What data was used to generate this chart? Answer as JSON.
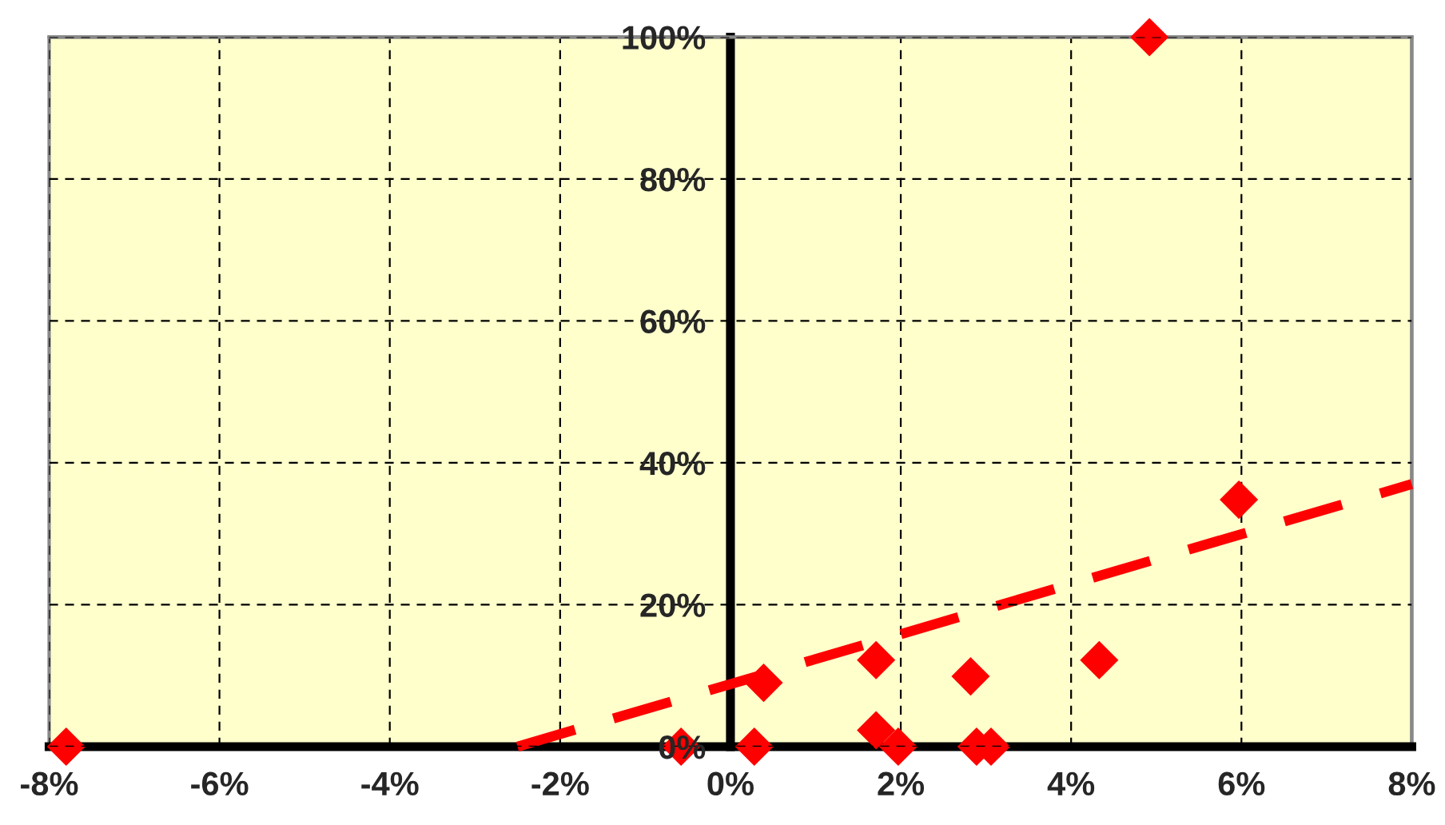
{
  "chart_data": {
    "type": "scatter",
    "xlim": [
      -8,
      8
    ],
    "ylim": [
      0,
      100
    ],
    "xticks": [
      {
        "value": -8,
        "label": "-8%"
      },
      {
        "value": -6,
        "label": "-6%"
      },
      {
        "value": -4,
        "label": "-4%"
      },
      {
        "value": -2,
        "label": "-2%"
      },
      {
        "value": 0,
        "label": "0%"
      },
      {
        "value": 2,
        "label": "2%"
      },
      {
        "value": 4,
        "label": "4%"
      },
      {
        "value": 6,
        "label": "6%"
      },
      {
        "value": 8,
        "label": "8%"
      }
    ],
    "yticks": [
      {
        "value": 0,
        "label": "0%"
      },
      {
        "value": 20,
        "label": "20%"
      },
      {
        "value": 40,
        "label": "40%"
      },
      {
        "value": 60,
        "label": "60%"
      },
      {
        "value": 80,
        "label": "80%"
      },
      {
        "value": 100,
        "label": "100%"
      }
    ],
    "grid": true,
    "legend": false,
    "series": [
      {
        "marker": "diamond",
        "color": "#ff0000",
        "x": [
          -7.8,
          -0.58,
          0.28,
          0.39,
          1.71,
          1.71,
          1.97,
          2.82,
          2.89,
          3.06,
          4.33,
          4.92,
          5.97
        ],
        "values": [
          0,
          0,
          0,
          9,
          12.2,
          2.3,
          0,
          9.9,
          0,
          0,
          12.2,
          100,
          34.8
        ]
      },
      {
        "type": "line",
        "line_style": "dashed",
        "color": "#ff0000",
        "x": [
          -2.5,
          8
        ],
        "values": [
          0,
          37
        ]
      }
    ]
  }
}
